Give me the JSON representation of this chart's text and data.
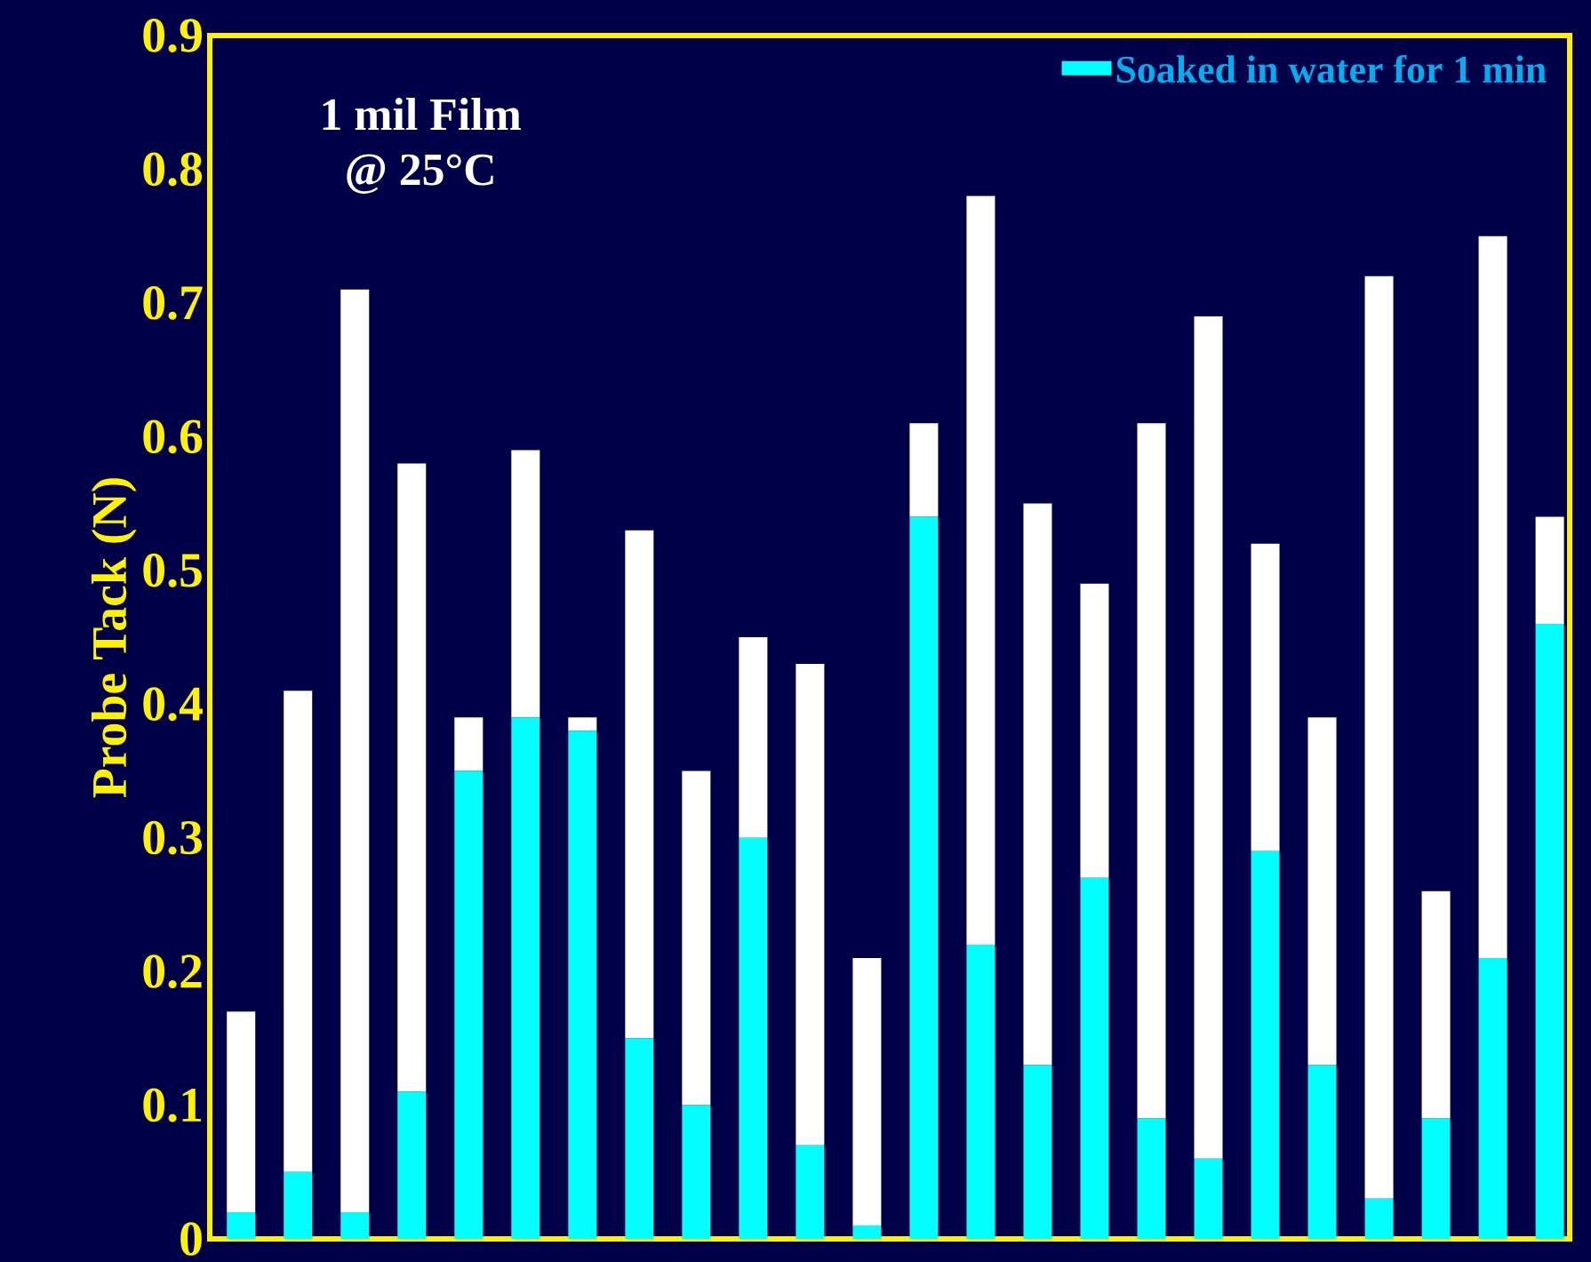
{
  "chart_data": {
    "type": "bar",
    "stacked": true,
    "ylabel": "Probe Tack (N)",
    "categories": [
      null,
      null,
      null,
      null,
      null,
      null,
      null,
      null,
      null,
      null,
      null,
      null,
      null,
      null,
      null,
      null,
      null,
      null,
      null,
      null,
      null,
      null,
      null,
      null
    ],
    "series": [
      {
        "name": "Soaked in water for 1 min",
        "color": "#00ffff",
        "values": [
          0.02,
          0.05,
          0.02,
          0.11,
          0.35,
          0.39,
          0.38,
          0.15,
          0.1,
          0.3,
          0.07,
          0.01,
          0.54,
          0.22,
          0.13,
          0.27,
          0.09,
          0.06,
          0.29,
          0.13,
          0.03,
          0.09,
          0.21,
          0.46
        ]
      },
      {
        "color": "#ffffff",
        "values": [
          0.15,
          0.36,
          0.69,
          0.47,
          0.04,
          0.2,
          0.01,
          0.38,
          0.25,
          0.15,
          0.36,
          0.2,
          0.07,
          0.56,
          0.42,
          0.22,
          0.52,
          0.63,
          0.23,
          0.26,
          0.69,
          0.17,
          0.54,
          0.08
        ]
      }
    ],
    "ylim": [
      0,
      0.9
    ],
    "yticks": [
      0,
      0.1,
      0.2,
      0.3,
      0.4,
      0.5,
      0.6,
      0.7,
      0.8,
      0.9
    ],
    "legend": "top right",
    "grid": false,
    "annotations": [
      "1 mil Film",
      "@ 25°C"
    ]
  }
}
